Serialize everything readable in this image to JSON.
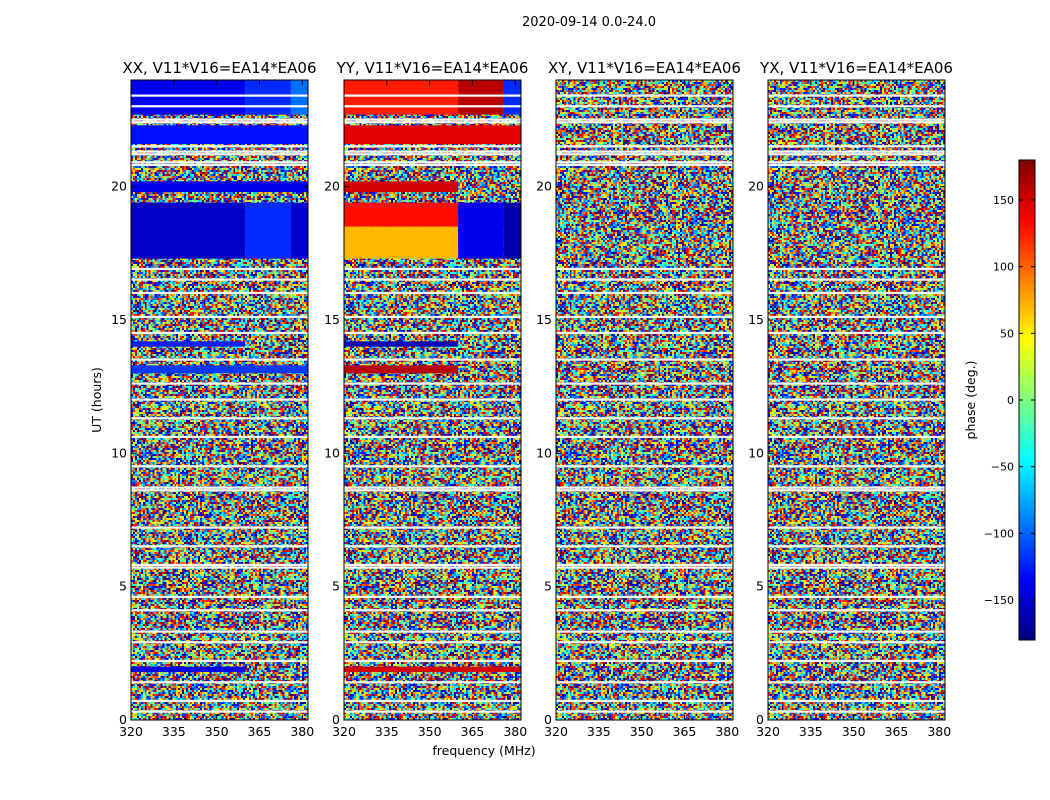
{
  "figure": {
    "suptitle": "2020-09-14 0.0-24.0"
  },
  "chart_data": {
    "type": "heatmap",
    "xlabel": "frequency (MHz)",
    "ylabel": "UT (hours)",
    "xlim": [
      320,
      382
    ],
    "ylim": [
      0,
      24
    ],
    "xticks": [
      320,
      335,
      350,
      365,
      380
    ],
    "yticks": [
      0,
      5,
      10,
      15,
      20
    ],
    "panels": [
      {
        "title": "XX, V11*V16=EA14*EA06",
        "coherent": [
          {
            "t0": 22.7,
            "t1": 24.0,
            "f0": 320,
            "f1": 360,
            "phase": -140
          },
          {
            "t0": 22.7,
            "t1": 24.0,
            "f0": 360,
            "f1": 376,
            "phase": -120
          },
          {
            "t0": 22.7,
            "t1": 24.0,
            "f0": 376,
            "f1": 382,
            "phase": -95
          },
          {
            "t0": 21.6,
            "t1": 22.3,
            "f0": 320,
            "f1": 382,
            "phase": -130
          },
          {
            "t0": 19.8,
            "t1": 20.2,
            "f0": 320,
            "f1": 382,
            "phase": -140
          },
          {
            "t0": 17.3,
            "t1": 19.4,
            "f0": 320,
            "f1": 360,
            "phase": -155
          },
          {
            "t0": 17.3,
            "t1": 19.4,
            "f0": 360,
            "f1": 376,
            "phase": -120
          },
          {
            "t0": 17.3,
            "t1": 19.4,
            "f0": 376,
            "f1": 382,
            "phase": -150
          },
          {
            "t0": 13.0,
            "t1": 13.3,
            "f0": 320,
            "f1": 382,
            "phase": -115
          },
          {
            "t0": 14.0,
            "t1": 14.2,
            "f0": 320,
            "f1": 360,
            "phase": -125
          },
          {
            "t0": 1.8,
            "t1": 2.0,
            "f0": 320,
            "f1": 360,
            "phase": -140
          }
        ]
      },
      {
        "title": "YY, V11*V16=EA14*EA06",
        "coherent": [
          {
            "t0": 22.7,
            "t1": 24.0,
            "f0": 320,
            "f1": 360,
            "phase": 125
          },
          {
            "t0": 22.7,
            "t1": 24.0,
            "f0": 360,
            "f1": 376,
            "phase": 160
          },
          {
            "t0": 22.7,
            "t1": 24.0,
            "f0": 376,
            "f1": 382,
            "phase": -120
          },
          {
            "t0": 21.6,
            "t1": 22.3,
            "f0": 320,
            "f1": 382,
            "phase": 145
          },
          {
            "t0": 19.8,
            "t1": 20.2,
            "f0": 320,
            "f1": 360,
            "phase": 150
          },
          {
            "t0": 18.5,
            "t1": 19.4,
            "f0": 320,
            "f1": 360,
            "phase": 130
          },
          {
            "t0": 17.3,
            "t1": 18.5,
            "f0": 320,
            "f1": 360,
            "phase": 70
          },
          {
            "t0": 17.3,
            "t1": 19.4,
            "f0": 360,
            "f1": 376,
            "phase": -140
          },
          {
            "t0": 17.3,
            "t1": 19.4,
            "f0": 376,
            "f1": 382,
            "phase": -165
          },
          {
            "t0": 13.0,
            "t1": 13.3,
            "f0": 320,
            "f1": 360,
            "phase": 160
          },
          {
            "t0": 14.0,
            "t1": 14.2,
            "f0": 320,
            "f1": 360,
            "phase": -160
          },
          {
            "t0": 1.8,
            "t1": 2.0,
            "f0": 320,
            "f1": 382,
            "phase": 150
          }
        ]
      },
      {
        "title": "XY, V11*V16=EA14*EA06",
        "coherent": []
      },
      {
        "title": "YX, V11*V16=EA14*EA06",
        "coherent": []
      }
    ],
    "blank_rows": [
      0.3,
      0.7,
      1.4,
      2.2,
      2.9,
      3.3,
      4.1,
      4.6,
      5.7,
      5.8,
      6.5,
      7.2,
      8.6,
      8.7,
      9.5,
      10.6,
      11.3,
      12.0,
      12.6,
      13.5,
      14.5,
      15.1,
      16.0,
      16.5,
      16.9,
      20.8,
      20.9,
      21.2,
      21.3,
      21.5,
      22.4,
      22.5,
      23.0,
      23.4
    ],
    "colorbar": {
      "label": "phase (deg.)",
      "lim": [
        -180,
        180
      ],
      "ticks": [
        150,
        100,
        50,
        0,
        -50,
        -100,
        -150
      ],
      "tick_labels": [
        "150",
        "100",
        "50",
        "0",
        "−50",
        "−100",
        "−150"
      ],
      "colormap": "jet",
      "colors": [
        "#00007f",
        "#0000ff",
        "#007fff",
        "#00ffff",
        "#7fff7f",
        "#ffff00",
        "#ff7f00",
        "#ff0000",
        "#7f0000"
      ]
    },
    "blank_color": "#ffffff",
    "frame_color": "#000000"
  }
}
